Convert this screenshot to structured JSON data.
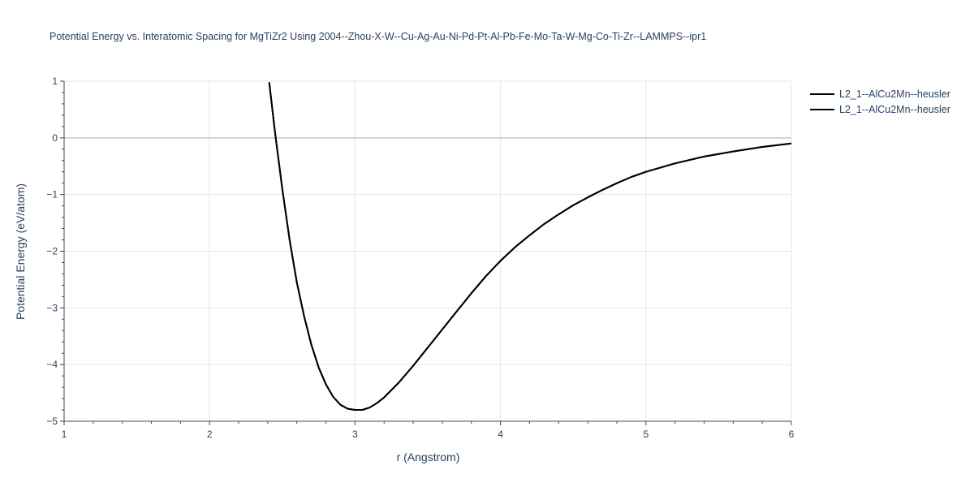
{
  "chart": {
    "title": "Potential Energy vs. Interatomic Spacing for MgTiZr2 Using 2004--Zhou-X-W--Cu-Ag-Au-Ni-Pd-Pt-Al-Pb-Fe-Mo-Ta-W-Mg-Co-Ti-Zr--LAMMPS--ipr1"
  },
  "legend": [
    {
      "label": "L2_1--AlCu2Mn--heusler",
      "color": "#000000"
    },
    {
      "label": "L2_1--AlCu2Mn--heusler",
      "color": "#000000"
    }
  ],
  "chart_data": {
    "type": "line",
    "title": "Potential Energy vs. Interatomic Spacing for MgTiZr2 Using 2004--Zhou-X-W--Cu-Ag-Au-Ni-Pd-Pt-Al-Pb-Fe-Mo-Ta-W-Mg-Co-Ti-Zr--LAMMPS--ipr1",
    "xlabel": "r (Angstrom)",
    "ylabel": "Potential Energy (eV/atom)",
    "xlim": [
      1,
      6
    ],
    "ylim": [
      -5,
      1
    ],
    "xticks": [
      1,
      2,
      3,
      4,
      5,
      6
    ],
    "yticks": [
      1,
      0,
      -1,
      -2,
      -3,
      -4,
      -5
    ],
    "ytick_labels": [
      "1",
      "0",
      "−1",
      "−2",
      "−3",
      "−4",
      "−5"
    ],
    "grid": true,
    "legend_position": "top-right",
    "series": [
      {
        "name": "L2_1--AlCu2Mn--heusler",
        "color": "#000000",
        "x": [
          2.41,
          2.45,
          2.5,
          2.55,
          2.6,
          2.65,
          2.7,
          2.75,
          2.8,
          2.85,
          2.9,
          2.95,
          3.0,
          3.05,
          3.1,
          3.15,
          3.2,
          3.3,
          3.4,
          3.5,
          3.6,
          3.7,
          3.8,
          3.9,
          4.0,
          4.1,
          4.2,
          4.3,
          4.4,
          4.5,
          4.6,
          4.7,
          4.8,
          4.9,
          5.0,
          5.2,
          5.4,
          5.6,
          5.8,
          6.0
        ],
        "y": [
          0.98,
          0.1,
          -0.9,
          -1.8,
          -2.55,
          -3.15,
          -3.65,
          -4.05,
          -4.35,
          -4.57,
          -4.71,
          -4.78,
          -4.8,
          -4.8,
          -4.76,
          -4.68,
          -4.58,
          -4.32,
          -4.02,
          -3.7,
          -3.38,
          -3.06,
          -2.74,
          -2.44,
          -2.17,
          -1.93,
          -1.72,
          -1.52,
          -1.35,
          -1.19,
          -1.05,
          -0.92,
          -0.8,
          -0.69,
          -0.6,
          -0.45,
          -0.33,
          -0.24,
          -0.16,
          -0.1
        ]
      },
      {
        "name": "L2_1--AlCu2Mn--heusler",
        "color": "#000000",
        "x": [
          2.41,
          2.45,
          2.5,
          2.55,
          2.6,
          2.65,
          2.7,
          2.75,
          2.8,
          2.85,
          2.9,
          2.95,
          3.0,
          3.05,
          3.1,
          3.15,
          3.2,
          3.3,
          3.4,
          3.5,
          3.6,
          3.7,
          3.8,
          3.9,
          4.0,
          4.1,
          4.2,
          4.3,
          4.4,
          4.5,
          4.6,
          4.7,
          4.8,
          4.9,
          5.0,
          5.2,
          5.4,
          5.6,
          5.8,
          6.0
        ],
        "y": [
          0.98,
          0.1,
          -0.9,
          -1.8,
          -2.55,
          -3.15,
          -3.65,
          -4.05,
          -4.35,
          -4.57,
          -4.71,
          -4.78,
          -4.8,
          -4.8,
          -4.76,
          -4.68,
          -4.58,
          -4.32,
          -4.02,
          -3.7,
          -3.38,
          -3.06,
          -2.74,
          -2.44,
          -2.17,
          -1.93,
          -1.72,
          -1.52,
          -1.35,
          -1.19,
          -1.05,
          -0.92,
          -0.8,
          -0.69,
          -0.6,
          -0.45,
          -0.33,
          -0.24,
          -0.16,
          -0.1
        ]
      }
    ]
  }
}
